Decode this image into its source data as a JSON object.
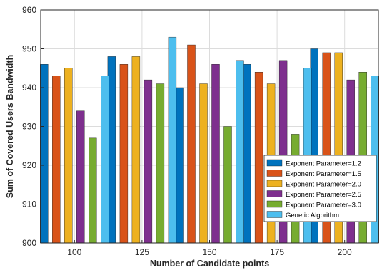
{
  "chart_data": {
    "type": "bar",
    "xlabel": "Number of Candidate points",
    "ylabel": "Sum of Covered Users Bandwidth",
    "categories": [
      "100",
      "125",
      "150",
      "175",
      "200"
    ],
    "ylim": [
      900,
      960
    ],
    "yticks": [
      900,
      910,
      920,
      930,
      940,
      950,
      960
    ],
    "grid": true,
    "legend_position": "bottom-right",
    "series": [
      {
        "name": "Exponent Parameter=1.2",
        "color": "#0072BD",
        "values": [
          946,
          948,
          940,
          946,
          950
        ]
      },
      {
        "name": "Exponent Parameter=1.5",
        "color": "#D95319",
        "values": [
          943,
          946,
          951,
          944,
          949
        ]
      },
      {
        "name": "Exponent Parameter=2.0",
        "color": "#EDB120",
        "values": [
          945,
          948,
          941,
          941,
          949
        ]
      },
      {
        "name": "Exponent Parameter=2.5",
        "color": "#7E2F8E",
        "values": [
          934,
          942,
          946,
          947,
          942
        ]
      },
      {
        "name": "Exponent Parameter=3.0",
        "color": "#77AC30",
        "values": [
          927,
          941,
          930,
          928,
          944
        ]
      },
      {
        "name": "Genetic Algorithm",
        "color": "#4DBEEE",
        "values": [
          943,
          953,
          947,
          945,
          943
        ]
      }
    ]
  }
}
